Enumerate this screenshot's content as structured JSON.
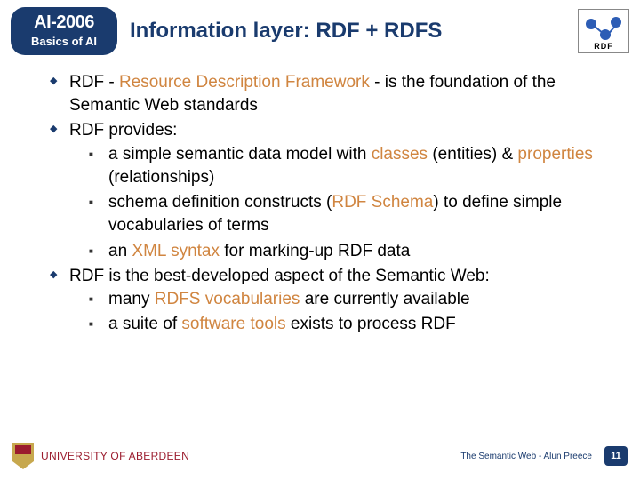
{
  "header": {
    "course_code": "AI-2006",
    "course_sub": "Basics of AI",
    "title": "Information layer: RDF + RDFS",
    "rdf_logo_label": "RDF"
  },
  "colors": {
    "brand_navy": "#1a3b6e",
    "accent_orange": "#d08540",
    "uni_red": "#9b1c2e",
    "uni_gold": "#c7a84e"
  },
  "bullets": {
    "b1_pre": "RDF - ",
    "b1_accent": "Resource Description Framework",
    "b1_post": " - is the foundation of the Semantic Web standards",
    "b2": "RDF provides:",
    "b2a_pre": "a simple semantic data model with ",
    "b2a_a1": "classes",
    "b2a_mid": " (entities) & ",
    "b2a_a2": "properties",
    "b2a_post": " (relationships)",
    "b2b_pre": "schema definition constructs (",
    "b2b_a": "RDF Schema",
    "b2b_post": ") to define simple vocabularies of terms",
    "b2c_pre": "an ",
    "b2c_a": "XML syntax",
    "b2c_post": " for marking-up RDF data",
    "b3": "RDF is the best-developed aspect of the Semantic Web:",
    "b3a_pre": "many ",
    "b3a_a": "RDFS vocabularies",
    "b3a_post": " are currently available",
    "b3b_pre": "a suite of ",
    "b3b_a": "software tools",
    "b3b_post": " exists to process RDF"
  },
  "footer": {
    "university": "UNIVERSITY OF ABERDEEN",
    "credit": "The Semantic Web - Alun Preece",
    "page": "11"
  }
}
